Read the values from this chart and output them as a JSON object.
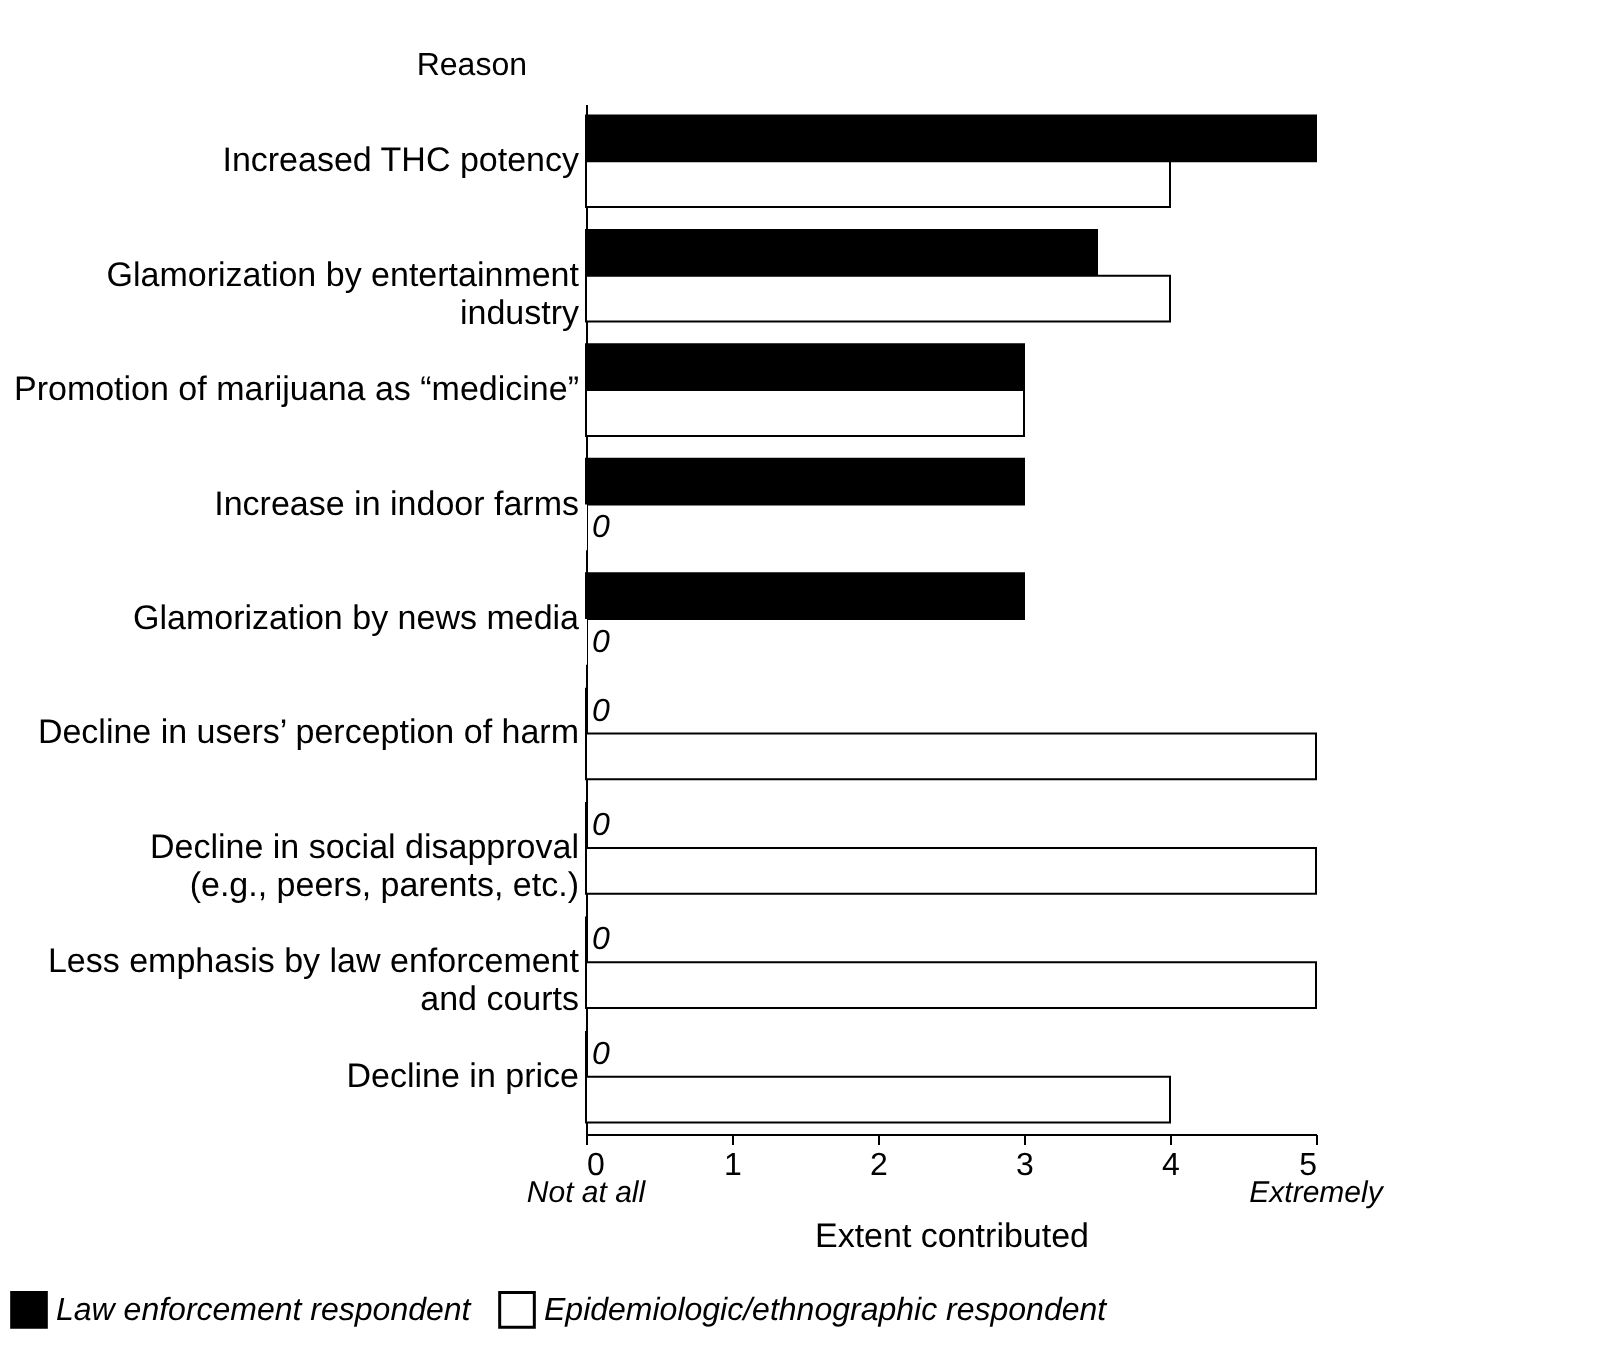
{
  "chart_data": {
    "type": "bar",
    "orientation": "horizontal",
    "ylabel": "Reason",
    "xlabel": "Extent contributed",
    "categories": [
      "Increased THC potency",
      "Glamorization by entertainment industry",
      "Promotion of marijuana as “medicine”",
      "Increase in indoor farms",
      "Glamorization by news media",
      "Decline in users’ perception of harm",
      "Decline in social disapproval (e.g., peers, parents, etc.)",
      "Less emphasis by law enforcement and courts",
      "Decline in price"
    ],
    "series": [
      {
        "name": "Law enforcement respondent",
        "color": "#000000",
        "values": [
          5,
          3.5,
          3,
          3,
          3,
          0,
          0,
          0,
          0
        ],
        "value_labels": [
          null,
          null,
          null,
          null,
          null,
          "0",
          "0",
          "0",
          "0"
        ]
      },
      {
        "name": "Epidemiologic/ethnographic respondent",
        "color": "#ffffff",
        "values": [
          4,
          4,
          3,
          0,
          0,
          5,
          5,
          5,
          4
        ],
        "value_labels": [
          null,
          null,
          null,
          "0",
          "0",
          null,
          null,
          null,
          null
        ]
      }
    ],
    "xlim": [
      0,
      5
    ],
    "xticks": [
      0,
      1,
      2,
      3,
      4,
      5
    ],
    "annotations": [
      "Not at all",
      "Extremely"
    ],
    "grid": false,
    "legend": "bottom"
  }
}
